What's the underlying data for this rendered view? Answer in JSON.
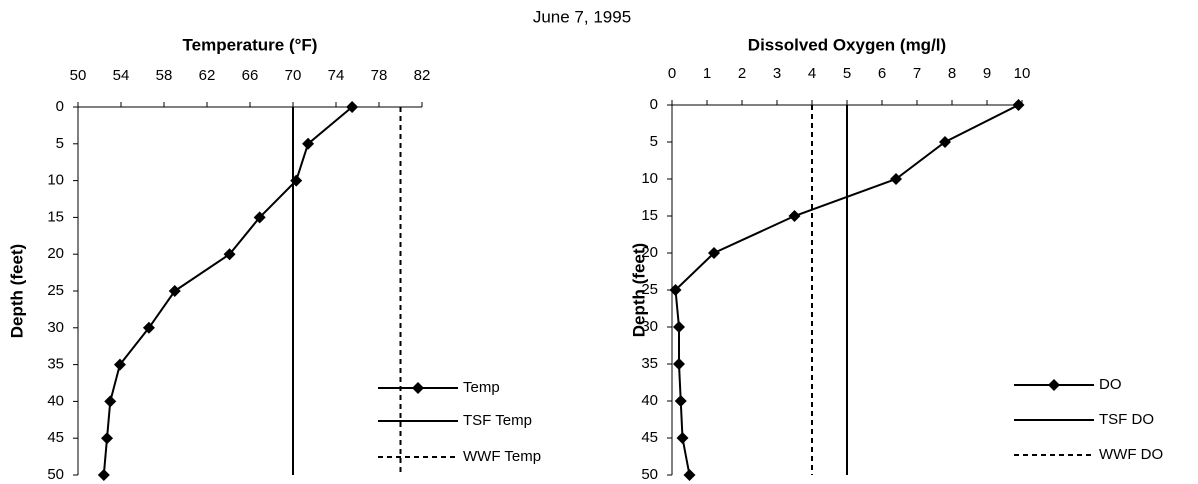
{
  "title": "June 7, 1995",
  "chart_data": [
    {
      "type": "profile",
      "title": "Temperature (°F)",
      "y_label": "Depth (feet)",
      "y": [
        0,
        5,
        10,
        15,
        20,
        25,
        30,
        35,
        40,
        45,
        50
      ],
      "series": [
        {
          "name": "Temp",
          "color": "#000000",
          "values": [
            75.5,
            71.4,
            70.3,
            66.9,
            64.1,
            59,
            56.6,
            53.9,
            53,
            52.7,
            52.4
          ]
        }
      ],
      "reference_lines": [
        {
          "name": "TSF Temp",
          "value": 70,
          "style": "solid"
        },
        {
          "name": "WWF Temp",
          "value": 80,
          "style": "dashed"
        }
      ],
      "xlim": [
        50,
        82
      ],
      "xticks": [
        50,
        54,
        58,
        62,
        66,
        70,
        74,
        78,
        82
      ],
      "ylim": [
        0,
        50
      ],
      "yticks": [
        0,
        5,
        10,
        15,
        20,
        25,
        30,
        35,
        40,
        45,
        50
      ],
      "y_reversed": true
    },
    {
      "type": "profile",
      "title": "Dissolved Oxygen (mg/l)",
      "y_label": "Depth (feet)",
      "y": [
        0,
        5,
        10,
        15,
        20,
        25,
        30,
        35,
        40,
        45,
        50
      ],
      "series": [
        {
          "name": "DO",
          "color": "#000000",
          "values": [
            9.9,
            7.8,
            6.4,
            3.5,
            1.2,
            0.1,
            0.2,
            0.2,
            0.25,
            0.3,
            0.5
          ]
        }
      ],
      "reference_lines": [
        {
          "name": "TSF DO",
          "value": 5,
          "style": "solid"
        },
        {
          "name": "WWF DO",
          "value": 4,
          "style": "dashed"
        }
      ],
      "xlim": [
        0,
        10
      ],
      "xticks": [
        0,
        1,
        2,
        3,
        4,
        5,
        6,
        7,
        8,
        9,
        10
      ],
      "ylim": [
        0,
        50
      ],
      "yticks": [
        0,
        5,
        10,
        15,
        20,
        25,
        30,
        35,
        40,
        45,
        50
      ],
      "y_reversed": true
    }
  ]
}
